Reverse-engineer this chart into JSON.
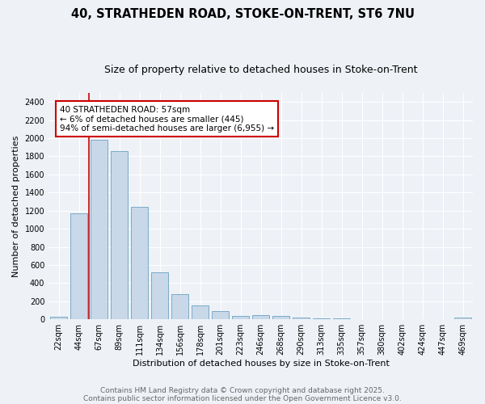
{
  "title_line1": "40, STRATHEDEN ROAD, STOKE-ON-TRENT, ST6 7NU",
  "title_line2": "Size of property relative to detached houses in Stoke-on-Trent",
  "xlabel": "Distribution of detached houses by size in Stoke-on-Trent",
  "ylabel": "Number of detached properties",
  "bar_color": "#c8d8e8",
  "bar_edge_color": "#7aaac8",
  "annotation_box_color": "#cc0000",
  "vline_color": "#cc0000",
  "background_color": "#eef2f7",
  "grid_color": "#ffffff",
  "categories": [
    "22sqm",
    "44sqm",
    "67sqm",
    "89sqm",
    "111sqm",
    "134sqm",
    "156sqm",
    "178sqm",
    "201sqm",
    "223sqm",
    "246sqm",
    "268sqm",
    "290sqm",
    "313sqm",
    "335sqm",
    "357sqm",
    "380sqm",
    "402sqm",
    "424sqm",
    "447sqm",
    "469sqm"
  ],
  "values": [
    25,
    1170,
    1980,
    1860,
    1240,
    520,
    280,
    155,
    90,
    40,
    45,
    40,
    20,
    15,
    8,
    5,
    5,
    3,
    3,
    2,
    18
  ],
  "ylim": [
    0,
    2500
  ],
  "yticks": [
    0,
    200,
    400,
    600,
    800,
    1000,
    1200,
    1400,
    1600,
    1800,
    2000,
    2200,
    2400
  ],
  "annotation_text": "40 STRATHEDEN ROAD: 57sqm\n← 6% of detached houses are smaller (445)\n94% of semi-detached houses are larger (6,955) →",
  "footnote1": "Contains HM Land Registry data © Crown copyright and database right 2025.",
  "footnote2": "Contains public sector information licensed under the Open Government Licence v3.0.",
  "title_fontsize": 10.5,
  "subtitle_fontsize": 9,
  "annotation_fontsize": 7.5,
  "tick_fontsize": 7,
  "ylabel_fontsize": 8,
  "xlabel_fontsize": 8,
  "footnote_fontsize": 6.5
}
